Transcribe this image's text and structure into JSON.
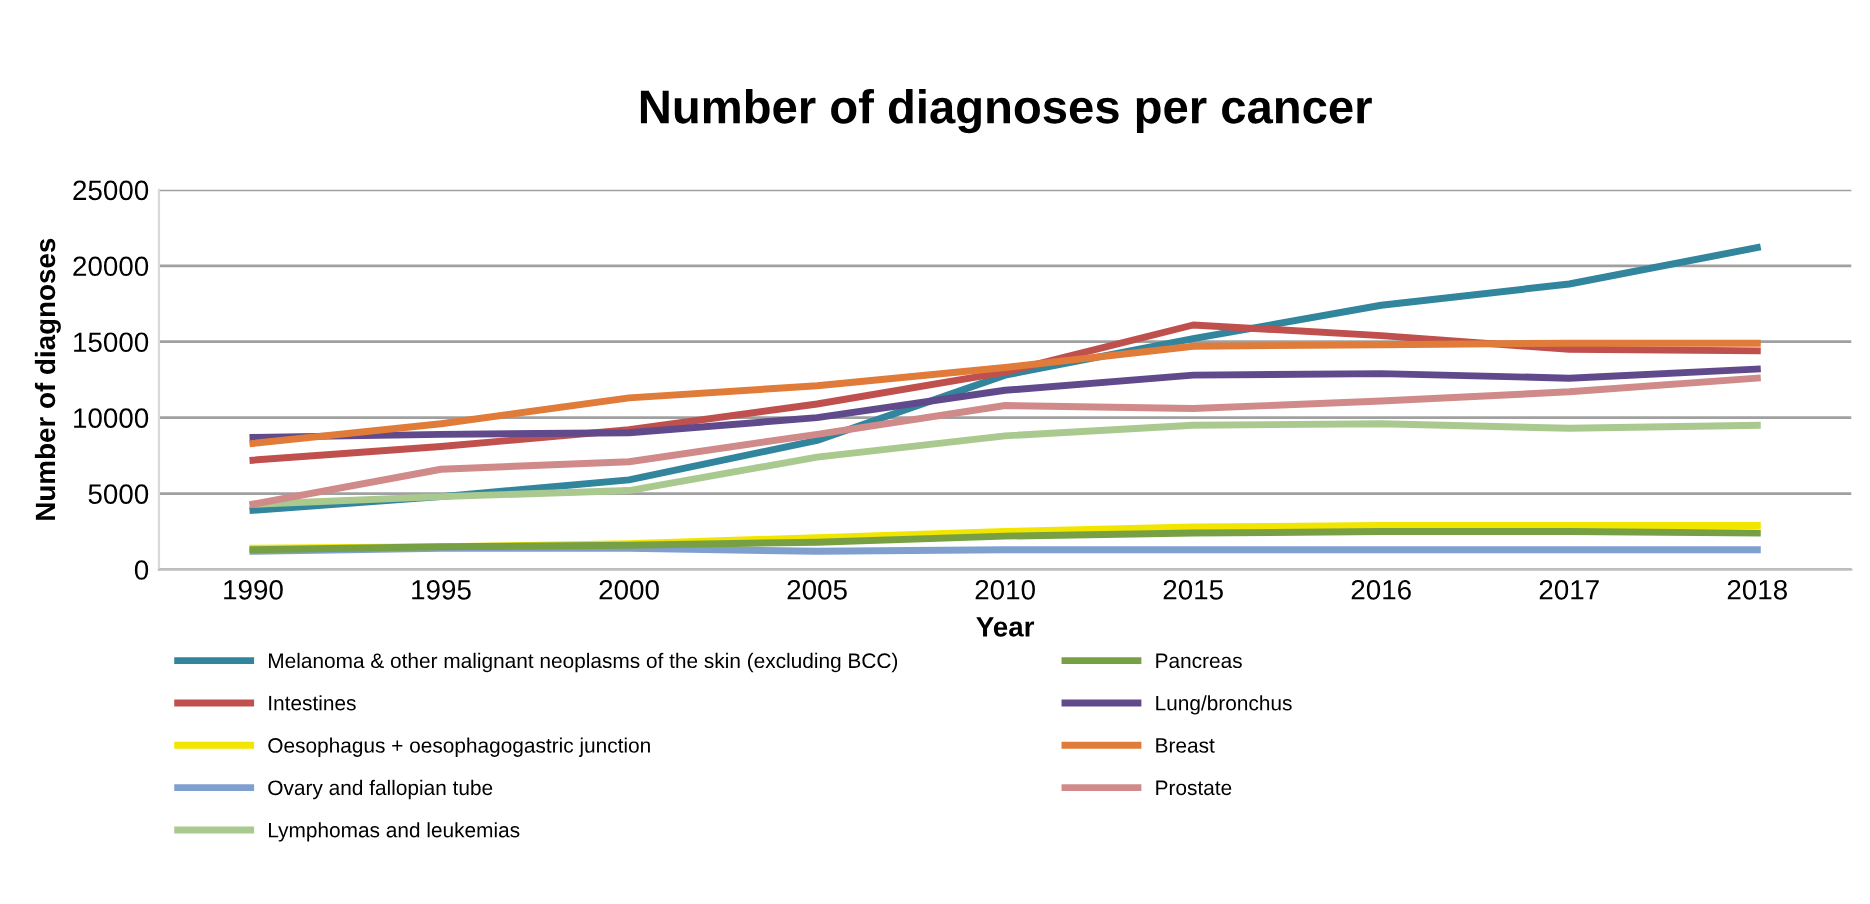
{
  "chart_data": {
    "type": "line",
    "title": "Number of diagnoses per cancer",
    "xlabel": "Year",
    "ylabel": "Number of diagnoses",
    "categories": [
      "1990",
      "1995",
      "2000",
      "2005",
      "2010",
      "2015",
      "2016",
      "2017",
      "2018"
    ],
    "ylim": [
      0,
      25000
    ],
    "yticks": [
      0,
      5000,
      10000,
      15000,
      20000,
      25000
    ],
    "grid": "y",
    "legend": "bottom",
    "marker": "none",
    "line_style": "solid",
    "series": [
      {
        "name": "Melanoma & other malignant neoplasms of the skin (excluding BCC)",
        "color": "#31859c",
        "values": [
          3900,
          4800,
          5900,
          8500,
          12800,
          15200,
          17400,
          18800,
          21200
        ]
      },
      {
        "name": "Intestines",
        "color": "#c0504d",
        "values": [
          7200,
          8100,
          9200,
          10900,
          13000,
          16100,
          15400,
          14500,
          14400
        ]
      },
      {
        "name": "Oesophagus + oesophagogastric junction",
        "color": "#f2e600",
        "values": [
          1400,
          1500,
          1700,
          2100,
          2500,
          2800,
          2900,
          2900,
          2900
        ]
      },
      {
        "name": "Ovary and fallopian tube",
        "color": "#7f9fcf",
        "values": [
          1200,
          1400,
          1400,
          1200,
          1300,
          1300,
          1300,
          1300,
          1300
        ]
      },
      {
        "name": "Lymphomas and leukemias",
        "color": "#a9c98f",
        "values": [
          4300,
          4800,
          5200,
          7400,
          8800,
          9500,
          9600,
          9300,
          9500
        ]
      },
      {
        "name": "Pancreas",
        "color": "#77a045",
        "values": [
          1300,
          1500,
          1600,
          1800,
          2200,
          2400,
          2500,
          2500,
          2400
        ]
      },
      {
        "name": "Lung/bronchus",
        "color": "#604a8b",
        "values": [
          8700,
          8900,
          9000,
          10000,
          11800,
          12800,
          12900,
          12600,
          13200
        ]
      },
      {
        "name": "Breast",
        "color": "#e07b39",
        "values": [
          8300,
          9600,
          11300,
          12100,
          13300,
          14700,
          14800,
          14900,
          14900
        ]
      },
      {
        "name": "Prostate",
        "color": "#d08a8a",
        "values": [
          4300,
          6600,
          7100,
          8900,
          10800,
          10600,
          11100,
          11700,
          12600
        ]
      }
    ]
  }
}
